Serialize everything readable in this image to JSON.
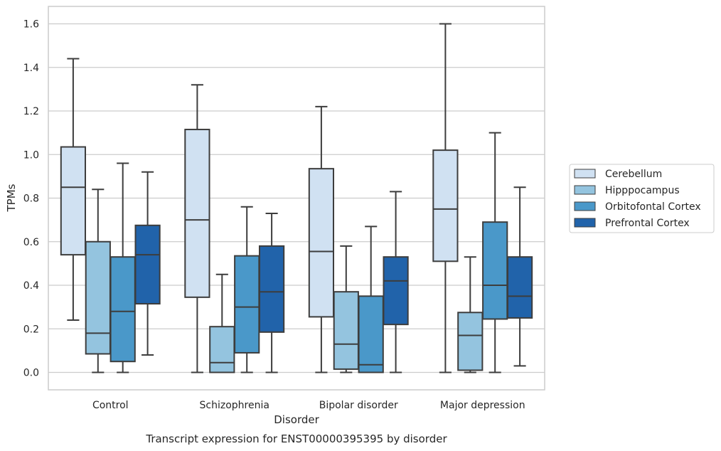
{
  "chart_data": {
    "type": "box",
    "title": "Transcript expression for ENST00000395395 by disorder",
    "xlabel": "Disorder",
    "ylabel": "TPMs",
    "ylim": [
      -0.08,
      1.68
    ],
    "yticks": [
      0.0,
      0.2,
      0.4,
      0.6,
      0.8,
      1.0,
      1.2,
      1.4,
      1.6
    ],
    "ytick_labels": [
      "0.0",
      "0.2",
      "0.4",
      "0.6",
      "0.8",
      "1.0",
      "1.2",
      "1.4",
      "1.6"
    ],
    "grid": true,
    "legend_position": "outside-right",
    "categories": [
      "Control",
      "Schizophrenia",
      "Bipolar disorder",
      "Major depression"
    ],
    "series": [
      {
        "name": "Cerebellum",
        "color": "#d0e1f2",
        "boxes": [
          {
            "whislo": 0.24,
            "q1": 0.54,
            "med": 0.85,
            "q3": 1.035,
            "whishi": 1.44
          },
          {
            "whislo": 0.0,
            "q1": 0.345,
            "med": 0.7,
            "q3": 1.115,
            "whishi": 1.32
          },
          {
            "whislo": 0.0,
            "q1": 0.255,
            "med": 0.555,
            "q3": 0.935,
            "whishi": 1.22
          },
          {
            "whislo": 0.0,
            "q1": 0.51,
            "med": 0.75,
            "q3": 1.02,
            "whishi": 1.6
          }
        ]
      },
      {
        "name": "Hipppocampus",
        "color": "#94c4df",
        "boxes": [
          {
            "whislo": 0.0,
            "q1": 0.085,
            "med": 0.18,
            "q3": 0.6,
            "whishi": 0.84
          },
          {
            "whislo": 0.0,
            "q1": 0.0,
            "med": 0.045,
            "q3": 0.21,
            "whishi": 0.45
          },
          {
            "whislo": 0.0,
            "q1": 0.015,
            "med": 0.13,
            "q3": 0.37,
            "whishi": 0.58
          },
          {
            "whislo": 0.0,
            "q1": 0.01,
            "med": 0.17,
            "q3": 0.275,
            "whishi": 0.53
          }
        ]
      },
      {
        "name": "Orbitofontal Cortex",
        "color": "#4a98c9",
        "boxes": [
          {
            "whislo": 0.0,
            "q1": 0.05,
            "med": 0.28,
            "q3": 0.53,
            "whishi": 0.96
          },
          {
            "whislo": 0.0,
            "q1": 0.09,
            "med": 0.3,
            "q3": 0.535,
            "whishi": 0.76
          },
          {
            "whislo": 0.0,
            "q1": 0.0,
            "med": 0.035,
            "q3": 0.35,
            "whishi": 0.67
          },
          {
            "whislo": 0.0,
            "q1": 0.245,
            "med": 0.4,
            "q3": 0.69,
            "whishi": 1.1
          }
        ]
      },
      {
        "name": "Prefrontal Cortex",
        "color": "#2163aa",
        "boxes": [
          {
            "whislo": 0.08,
            "q1": 0.315,
            "med": 0.54,
            "q3": 0.675,
            "whishi": 0.92
          },
          {
            "whislo": 0.0,
            "q1": 0.185,
            "med": 0.37,
            "q3": 0.58,
            "whishi": 0.73
          },
          {
            "whislo": 0.0,
            "q1": 0.22,
            "med": 0.42,
            "q3": 0.53,
            "whishi": 0.83
          },
          {
            "whislo": 0.03,
            "q1": 0.25,
            "med": 0.35,
            "q3": 0.53,
            "whishi": 0.85
          }
        ]
      }
    ]
  }
}
